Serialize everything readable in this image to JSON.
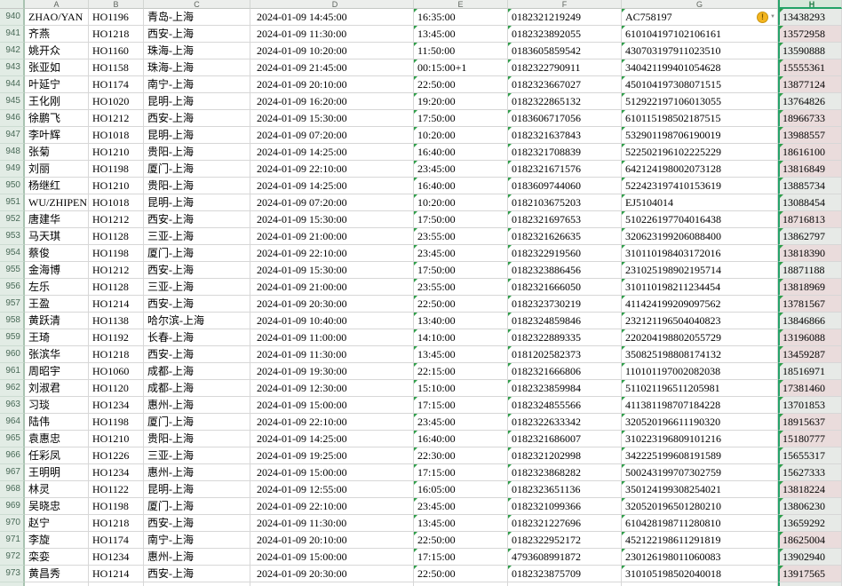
{
  "columns": {
    "letters": [
      "A",
      "B",
      "C",
      "D",
      "E",
      "F",
      "G",
      "H"
    ],
    "selected": "H"
  },
  "icons": {
    "warning_glyph": "!",
    "dropdown_glyph": "▼"
  },
  "colors": {
    "selection_green": "#26a366",
    "h_cell_fill": "#e7eae7",
    "h_cell_pink_fill": "#eadcdc",
    "triangle_green": "#2f9e49",
    "warning_yellow": "#f3b51f"
  },
  "rows": [
    {
      "n": "940",
      "name": "ZHAO/YAN",
      "flight": "HO1196",
      "route": "青岛-上海",
      "depart": "2024-01-09 14:45:00",
      "arrive": "16:35:00",
      "ticket": "0182321219249",
      "id": "AC758197",
      "phone": "13438293",
      "pink": false,
      "warn": true
    },
    {
      "n": "941",
      "name": "齐燕",
      "flight": "HO1218",
      "route": "西安-上海",
      "depart": "2024-01-09 11:30:00",
      "arrive": "13:45:00",
      "ticket": "0182323892055",
      "id": "610104197102106161",
      "phone": "13572958",
      "pink": true,
      "warn": false
    },
    {
      "n": "942",
      "name": "姚开众",
      "flight": "HO1160",
      "route": "珠海-上海",
      "depart": "2024-01-09 10:20:00",
      "arrive": "11:50:00",
      "ticket": "0183605859542",
      "id": "430703197911023510",
      "phone": "13590888",
      "pink": false,
      "warn": false
    },
    {
      "n": "943",
      "name": "张亚如",
      "flight": "HO1158",
      "route": "珠海-上海",
      "depart": "2024-01-09 21:45:00",
      "arrive": "00:15:00+1",
      "ticket": "0182322790911",
      "id": "340421199401054628",
      "phone": "15555361",
      "pink": true,
      "warn": false
    },
    {
      "n": "944",
      "name": "叶延宁",
      "flight": "HO1174",
      "route": "南宁-上海",
      "depart": "2024-01-09 20:10:00",
      "arrive": "22:50:00",
      "ticket": "0182323667027",
      "id": "450104197308071515",
      "phone": "13877124",
      "pink": true,
      "warn": false
    },
    {
      "n": "945",
      "name": "王化刚",
      "flight": "HO1020",
      "route": "昆明-上海",
      "depart": "2024-01-09 16:20:00",
      "arrive": "19:20:00",
      "ticket": "0182322865132",
      "id": "512922197106013055",
      "phone": "13764826",
      "pink": false,
      "warn": false
    },
    {
      "n": "946",
      "name": "徐鹏飞",
      "flight": "HO1212",
      "route": "西安-上海",
      "depart": "2024-01-09 15:30:00",
      "arrive": "17:50:00",
      "ticket": "0183606717056",
      "id": "610115198502187515",
      "phone": "18966733",
      "pink": true,
      "warn": false
    },
    {
      "n": "947",
      "name": "李叶辉",
      "flight": "HO1018",
      "route": "昆明-上海",
      "depart": "2024-01-09 07:20:00",
      "arrive": "10:20:00",
      "ticket": "0182321637843",
      "id": "532901198706190019",
      "phone": "13988557",
      "pink": true,
      "warn": false
    },
    {
      "n": "948",
      "name": "张菊",
      "flight": "HO1210",
      "route": "贵阳-上海",
      "depart": "2024-01-09 14:25:00",
      "arrive": "16:40:00",
      "ticket": "0182321708839",
      "id": "522502196102225229",
      "phone": "18616100",
      "pink": true,
      "warn": false
    },
    {
      "n": "949",
      "name": "刘丽",
      "flight": "HO1198",
      "route": "厦门-上海",
      "depart": "2024-01-09 22:10:00",
      "arrive": "23:45:00",
      "ticket": "0182321671576",
      "id": "642124198002073128",
      "phone": "13816849",
      "pink": true,
      "warn": false
    },
    {
      "n": "950",
      "name": "杨继红",
      "flight": "HO1210",
      "route": "贵阳-上海",
      "depart": "2024-01-09 14:25:00",
      "arrive": "16:40:00",
      "ticket": "0183609744060",
      "id": "522423197410153619",
      "phone": "13885734",
      "pink": false,
      "warn": false
    },
    {
      "n": "951",
      "name": "WU/ZHIPEN",
      "flight": "HO1018",
      "route": "昆明-上海",
      "depart": "2024-01-09 07:20:00",
      "arrive": "10:20:00",
      "ticket": "0182103675203",
      "id": "EJ5104014",
      "phone": "13088454",
      "pink": false,
      "warn": false
    },
    {
      "n": "952",
      "name": "唐建华",
      "flight": "HO1212",
      "route": "西安-上海",
      "depart": "2024-01-09 15:30:00",
      "arrive": "17:50:00",
      "ticket": "0182321697653",
      "id": "510226197704016438",
      "phone": "18716813",
      "pink": true,
      "warn": false
    },
    {
      "n": "953",
      "name": "马天琪",
      "flight": "HO1128",
      "route": "三亚-上海",
      "depart": "2024-01-09 21:00:00",
      "arrive": "23:55:00",
      "ticket": "0182321626635",
      "id": "320623199206088400",
      "phone": "13862797",
      "pink": false,
      "warn": false
    },
    {
      "n": "954",
      "name": "蔡俊",
      "flight": "HO1198",
      "route": "厦门-上海",
      "depart": "2024-01-09 22:10:00",
      "arrive": "23:45:00",
      "ticket": "0182322919560",
      "id": "310110198403172016",
      "phone": "13818390",
      "pink": true,
      "warn": false
    },
    {
      "n": "955",
      "name": "金海博",
      "flight": "HO1212",
      "route": "西安-上海",
      "depart": "2024-01-09 15:30:00",
      "arrive": "17:50:00",
      "ticket": "0182323886456",
      "id": "231025198902195714",
      "phone": "18871188",
      "pink": false,
      "warn": false
    },
    {
      "n": "956",
      "name": "左乐",
      "flight": "HO1128",
      "route": "三亚-上海",
      "depart": "2024-01-09 21:00:00",
      "arrive": "23:55:00",
      "ticket": "0182321666050",
      "id": "310110198211234454",
      "phone": "13818969",
      "pink": true,
      "warn": false
    },
    {
      "n": "957",
      "name": "王盈",
      "flight": "HO1214",
      "route": "西安-上海",
      "depart": "2024-01-09 20:30:00",
      "arrive": "22:50:00",
      "ticket": "0182323730219",
      "id": "411424199209097562",
      "phone": "13781567",
      "pink": true,
      "warn": false
    },
    {
      "n": "958",
      "name": "黄跃清",
      "flight": "HO1138",
      "route": "哈尔滨-上海",
      "depart": "2024-01-09 10:40:00",
      "arrive": "13:40:00",
      "ticket": "0182324859846",
      "id": "232121196504040823",
      "phone": "13846866",
      "pink": false,
      "warn": false
    },
    {
      "n": "959",
      "name": "王琦",
      "flight": "HO1192",
      "route": "长春-上海",
      "depart": "2024-01-09 11:00:00",
      "arrive": "14:10:00",
      "ticket": "0182322889335",
      "id": "220204198802055729",
      "phone": "13196088",
      "pink": true,
      "warn": false
    },
    {
      "n": "960",
      "name": "张滨华",
      "flight": "HO1218",
      "route": "西安-上海",
      "depart": "2024-01-09 11:30:00",
      "arrive": "13:45:00",
      "ticket": "0181202582373",
      "id": "350825198808174132",
      "phone": "13459287",
      "pink": true,
      "warn": false
    },
    {
      "n": "961",
      "name": "周昭宇",
      "flight": "HO1060",
      "route": "成都-上海",
      "depart": "2024-01-09 19:30:00",
      "arrive": "22:15:00",
      "ticket": "0182321666806",
      "id": "110101197002082038",
      "phone": "18516971",
      "pink": false,
      "warn": false
    },
    {
      "n": "962",
      "name": "刘淑君",
      "flight": "HO1120",
      "route": "成都-上海",
      "depart": "2024-01-09 12:30:00",
      "arrive": "15:10:00",
      "ticket": "0182323859984",
      "id": "511021196511205981",
      "phone": "17381460",
      "pink": true,
      "warn": false
    },
    {
      "n": "963",
      "name": "习琰",
      "flight": "HO1234",
      "route": "惠州-上海",
      "depart": "2024-01-09 15:00:00",
      "arrive": "17:15:00",
      "ticket": "0182324855566",
      "id": "411381198707184228",
      "phone": "13701853",
      "pink": false,
      "warn": false
    },
    {
      "n": "964",
      "name": "陆伟",
      "flight": "HO1198",
      "route": "厦门-上海",
      "depart": "2024-01-09 22:10:00",
      "arrive": "23:45:00",
      "ticket": "0182322633342",
      "id": "320520196611190320",
      "phone": "18915637",
      "pink": true,
      "warn": false
    },
    {
      "n": "965",
      "name": "袁惠忠",
      "flight": "HO1210",
      "route": "贵阳-上海",
      "depart": "2024-01-09 14:25:00",
      "arrive": "16:40:00",
      "ticket": "0182321686007",
      "id": "310223196809101216",
      "phone": "15180777",
      "pink": true,
      "warn": false
    },
    {
      "n": "966",
      "name": "任彩凤",
      "flight": "HO1226",
      "route": "三亚-上海",
      "depart": "2024-01-09 19:25:00",
      "arrive": "22:30:00",
      "ticket": "0182321202998",
      "id": "342225199608191589",
      "phone": "15655317",
      "pink": false,
      "warn": false
    },
    {
      "n": "967",
      "name": "王明明",
      "flight": "HO1234",
      "route": "惠州-上海",
      "depart": "2024-01-09 15:00:00",
      "arrive": "17:15:00",
      "ticket": "0182323868282",
      "id": "500243199707302759",
      "phone": "15627333",
      "pink": false,
      "warn": false
    },
    {
      "n": "968",
      "name": "林灵",
      "flight": "HO1122",
      "route": "昆明-上海",
      "depart": "2024-01-09 12:55:00",
      "arrive": "16:05:00",
      "ticket": "0182323651136",
      "id": "350124199308254021",
      "phone": "13818224",
      "pink": true,
      "warn": false
    },
    {
      "n": "969",
      "name": "吴晓忠",
      "flight": "HO1198",
      "route": "厦门-上海",
      "depart": "2024-01-09 22:10:00",
      "arrive": "23:45:00",
      "ticket": "0182321099366",
      "id": "320520196501280210",
      "phone": "13806230",
      "pink": false,
      "warn": false
    },
    {
      "n": "970",
      "name": "赵宁",
      "flight": "HO1218",
      "route": "西安-上海",
      "depart": "2024-01-09 11:30:00",
      "arrive": "13:45:00",
      "ticket": "0182321227696",
      "id": "610428198711280810",
      "phone": "13659292",
      "pink": false,
      "warn": false
    },
    {
      "n": "971",
      "name": "李旋",
      "flight": "HO1174",
      "route": "南宁-上海",
      "depart": "2024-01-09 20:10:00",
      "arrive": "22:50:00",
      "ticket": "0182322952172",
      "id": "452122198611291819",
      "phone": "18625004",
      "pink": true,
      "warn": false
    },
    {
      "n": "972",
      "name": "栾娈",
      "flight": "HO1234",
      "route": "惠州-上海",
      "depart": "2024-01-09 15:00:00",
      "arrive": "17:15:00",
      "ticket": "4793608991872",
      "id": "230126198011060083",
      "phone": "13902940",
      "pink": false,
      "warn": false
    },
    {
      "n": "973",
      "name": "黄昌秀",
      "flight": "HO1214",
      "route": "西安-上海",
      "depart": "2024-01-09 20:30:00",
      "arrive": "22:50:00",
      "ticket": "0182323875709",
      "id": "310105198502040018",
      "phone": "13917565",
      "pink": true,
      "warn": false
    },
    {
      "n": "974",
      "name": "",
      "flight": "",
      "route": "",
      "depart": "",
      "arrive": "",
      "ticket": "",
      "id": "",
      "phone": "",
      "pink": false,
      "warn": false
    }
  ]
}
